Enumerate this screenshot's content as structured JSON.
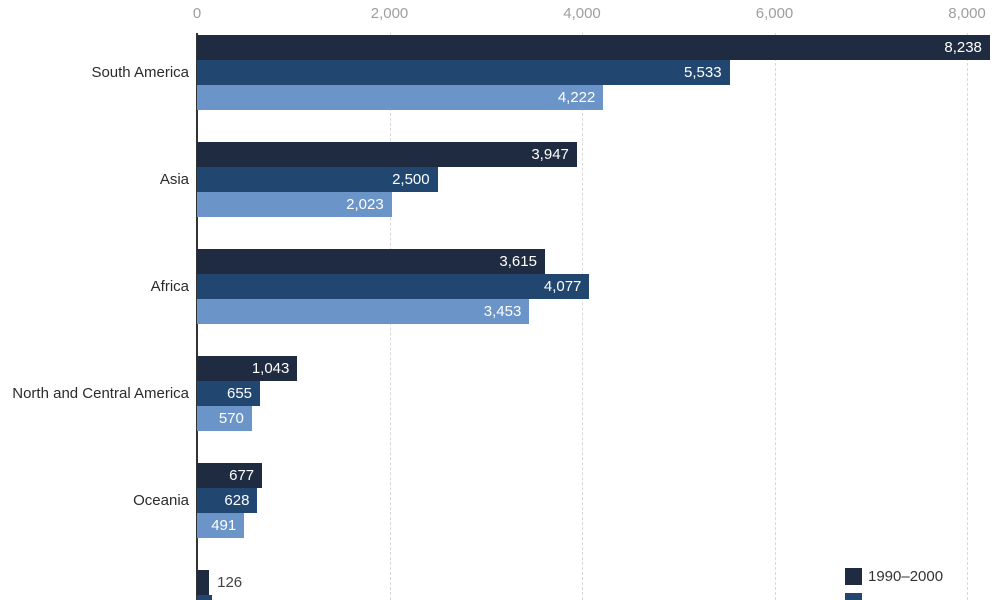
{
  "chart_data": {
    "type": "bar",
    "orientation": "horizontal-grouped",
    "title": "",
    "xlabel": "",
    "ylabel": "",
    "x_axis": {
      "position": "top",
      "tick_labels": [
        "0",
        "2,000",
        "4,000",
        "6,000",
        "8,000"
      ],
      "tick_values": [
        0,
        2000,
        4000,
        6000,
        8000
      ],
      "range": [
        0,
        8340
      ],
      "grid": "dashed-vertical"
    },
    "categories": [
      "South America",
      "Asia",
      "Africa",
      "North and Central America",
      "Oceania",
      ""
    ],
    "series": [
      {
        "name": "1990–2000",
        "color": "#1e2b40",
        "values": [
          8238,
          3947,
          3615,
          1043,
          677,
          126
        ],
        "labels": [
          "8,238",
          "3,947",
          "3,615",
          "1,043",
          "677",
          "126"
        ]
      },
      {
        "name": "",
        "color": "#21466f",
        "values": [
          5533,
          2500,
          4077,
          655,
          628,
          160
        ],
        "labels": [
          "5,533",
          "2,500",
          "4,077",
          "655",
          "628",
          ""
        ]
      },
      {
        "name": "",
        "color": "#6b94c8",
        "values": [
          4222,
          2023,
          3453,
          570,
          491,
          null
        ],
        "labels": [
          "4,222",
          "2,023",
          "3,453",
          "570",
          "491",
          ""
        ]
      }
    ],
    "legend": {
      "position": "bottom-right",
      "items": [
        {
          "label": "1990–2000",
          "color": "#1e2b40"
        },
        {
          "label": "",
          "color": "#21466f"
        }
      ]
    }
  },
  "style": {
    "background": "#ffffff",
    "axis_line_color": "#333333",
    "gridline_color": "#d8d8d8",
    "tick_label_color": "#9e9e9e",
    "category_label_color": "#2b2b2b",
    "value_label_inside_color": "#ffffff",
    "value_label_outside_color": "#424242"
  }
}
